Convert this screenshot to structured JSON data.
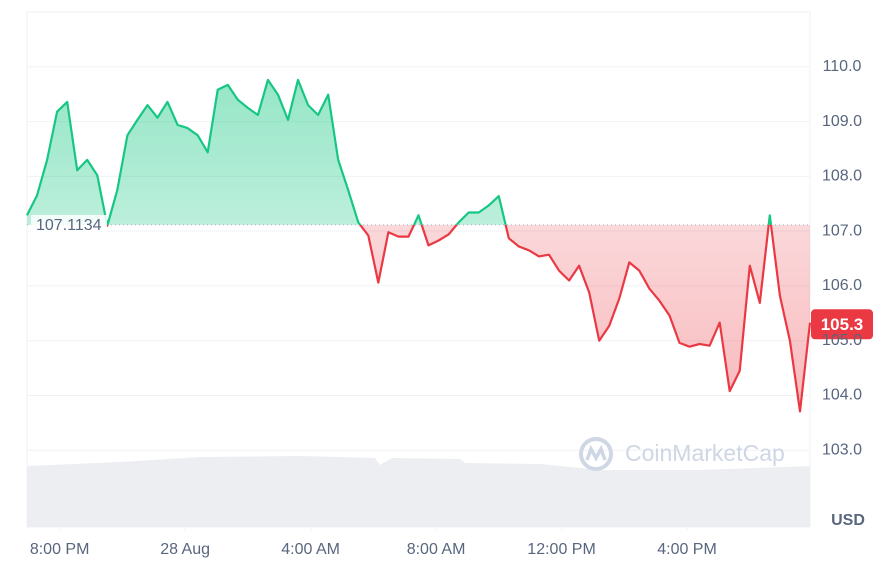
{
  "chart_data": {
    "type": "line",
    "x": [
      -1.04,
      -0.72,
      -0.4,
      -0.08,
      0.24,
      0.56,
      0.88,
      1.2,
      1.52,
      1.84,
      2.16,
      2.48,
      2.8,
      3.12,
      3.44,
      3.76,
      4.08,
      4.4,
      4.72,
      5.04,
      5.36,
      5.68,
      6,
      6.32,
      6.64,
      6.96,
      7.28,
      7.6,
      7.92,
      8.24,
      8.56,
      8.88,
      9.2,
      9.52,
      9.84,
      10.16,
      10.48,
      10.8,
      11.12,
      11.44,
      11.76,
      12.08,
      12.4,
      12.72,
      13.04,
      13.36,
      13.68,
      14,
      14.32,
      14.64,
      14.96,
      15.28,
      15.6,
      15.92,
      16.24,
      16.56,
      16.88,
      17.2,
      17.52,
      17.84,
      18.16,
      18.48,
      18.8,
      19.12,
      19.44,
      19.76,
      20.08,
      20.4,
      20.72,
      21.04,
      21.36,
      21.68,
      22,
      22.32,
      22.64,
      22.96,
      23.28,
      23.6,
      23.92
    ],
    "values": [
      107.29,
      107.65,
      108.3,
      109.18,
      109.36,
      108.11,
      108.3,
      108.02,
      107.1,
      107.75,
      108.75,
      109.03,
      109.3,
      109.07,
      109.36,
      108.94,
      108.88,
      108.75,
      108.44,
      109.58,
      109.67,
      109.4,
      109.25,
      109.12,
      109.76,
      109.49,
      109.03,
      109.76,
      109.3,
      109.12,
      109.49,
      108.3,
      107.75,
      107.16,
      106.92,
      106.06,
      106.98,
      106.9,
      106.9,
      107.29,
      106.74,
      106.83,
      106.94,
      107.16,
      107.34,
      107.34,
      107.47,
      107.64,
      106.87,
      106.72,
      106.65,
      106.54,
      106.57,
      106.28,
      106.1,
      106.37,
      105.88,
      105.0,
      105.27,
      105.77,
      106.43,
      106.28,
      105.95,
      105.73,
      105.46,
      104.96,
      104.89,
      104.94,
      104.91,
      105.33,
      104.08,
      104.45,
      106.37,
      105.69,
      107.29,
      105.82,
      105.0,
      103.71,
      105.33
    ],
    "baseline": 107.1134,
    "last_price": 105.3,
    "up_color": "#16c784",
    "down_color": "#ea3943",
    "xlim": [
      -1.04,
      23.92
    ],
    "xticks": [
      {
        "value": 0,
        "label": "8:00 PM"
      },
      {
        "value": 4,
        "label": "28 Aug"
      },
      {
        "value": 8,
        "label": "4:00 AM"
      },
      {
        "value": 12,
        "label": "8:00 AM"
      },
      {
        "value": 16,
        "label": "12:00 PM"
      },
      {
        "value": 20,
        "label": "4:00 PM"
      }
    ],
    "ylim": [
      101.6,
      111.0
    ],
    "yticks": [
      {
        "value": 103,
        "label": "103.0"
      },
      {
        "value": 104,
        "label": "104.0"
      },
      {
        "value": 105,
        "label": "105.0"
      },
      {
        "value": 106,
        "label": "106.0"
      },
      {
        "value": 107,
        "label": "107.0"
      },
      {
        "value": 108,
        "label": "108.0"
      },
      {
        "value": 109,
        "label": "109.0"
      },
      {
        "value": 110,
        "label": "110.0"
      }
    ],
    "grid": true,
    "unit": "USD",
    "watermark": "CoinMarketCap"
  }
}
